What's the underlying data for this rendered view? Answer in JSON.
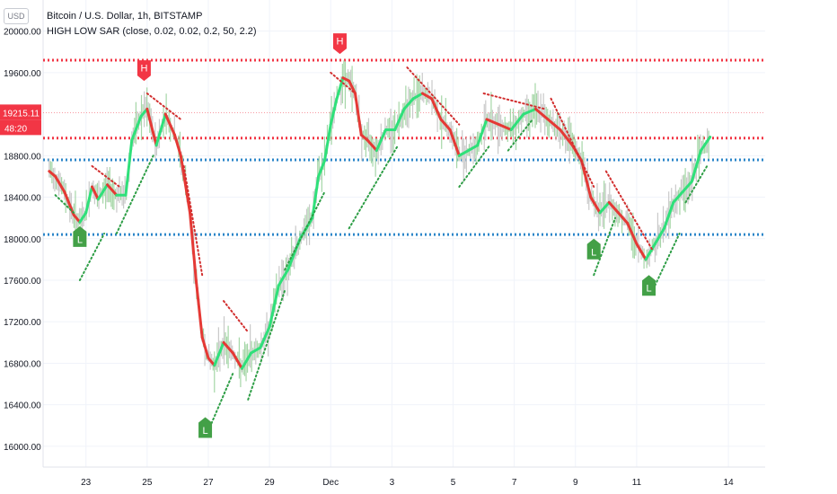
{
  "currency_button": "USD",
  "header": {
    "symbol_line": "Bitcoin / U.S. Dollar, 1h, BITSTAMP",
    "indicator_line": "HIGH LOW SAR  (close, 0.02, 0.02, 0.2, 50, 2.2)"
  },
  "chart_data": {
    "type": "line",
    "title": "Bitcoin / U.S. Dollar, 1h, BITSTAMP",
    "ylim": [
      15800,
      20300
    ],
    "y_ticks": [
      "20000.00",
      "19600.00",
      "18800.00",
      "18400.00",
      "18000.00",
      "17600.00",
      "17200.00",
      "16800.00",
      "16400.00",
      "16000.00"
    ],
    "x_ticks": [
      {
        "x": 23,
        "label": "23"
      },
      {
        "x": 25,
        "label": "25"
      },
      {
        "x": 27,
        "label": "27"
      },
      {
        "x": 29,
        "label": "29"
      },
      {
        "x": 31,
        "label": "Dec"
      },
      {
        "x": 33,
        "label": "3"
      },
      {
        "x": 35,
        "label": "5"
      },
      {
        "x": 37,
        "label": "7"
      },
      {
        "x": 39,
        "label": "9"
      },
      {
        "x": 41,
        "label": "11"
      },
      {
        "x": 44,
        "label": "14"
      }
    ],
    "price_label": {
      "value": 19215.11,
      "text": "19215.11",
      "countdown": "48:20"
    },
    "levels": [
      {
        "value": 19720,
        "color": "#f23645"
      },
      {
        "value": 18970,
        "color": "#f23645"
      },
      {
        "value": 18760,
        "color": "#2b86c9"
      },
      {
        "value": 18040,
        "color": "#2b86c9"
      }
    ],
    "smoothed_close": [
      {
        "x": 21.8,
        "y": 18650
      },
      {
        "x": 22.0,
        "y": 18600
      },
      {
        "x": 22.3,
        "y": 18450
      },
      {
        "x": 22.6,
        "y": 18230
      },
      {
        "x": 22.8,
        "y": 18160
      },
      {
        "x": 23.0,
        "y": 18250
      },
      {
        "x": 23.2,
        "y": 18500
      },
      {
        "x": 23.4,
        "y": 18380
      },
      {
        "x": 23.7,
        "y": 18520
      },
      {
        "x": 24.0,
        "y": 18420
      },
      {
        "x": 24.3,
        "y": 18420
      },
      {
        "x": 24.5,
        "y": 18950
      },
      {
        "x": 24.8,
        "y": 19180
      },
      {
        "x": 25.0,
        "y": 19250
      },
      {
        "x": 25.3,
        "y": 18900
      },
      {
        "x": 25.6,
        "y": 19200
      },
      {
        "x": 25.9,
        "y": 19000
      },
      {
        "x": 26.1,
        "y": 18800
      },
      {
        "x": 26.4,
        "y": 18250
      },
      {
        "x": 26.6,
        "y": 17600
      },
      {
        "x": 26.8,
        "y": 17050
      },
      {
        "x": 27.0,
        "y": 16850
      },
      {
        "x": 27.2,
        "y": 16780
      },
      {
        "x": 27.5,
        "y": 17000
      },
      {
        "x": 27.8,
        "y": 16900
      },
      {
        "x": 28.1,
        "y": 16750
      },
      {
        "x": 28.4,
        "y": 16900
      },
      {
        "x": 28.7,
        "y": 16950
      },
      {
        "x": 29.0,
        "y": 17150
      },
      {
        "x": 29.3,
        "y": 17550
      },
      {
        "x": 29.6,
        "y": 17700
      },
      {
        "x": 30.0,
        "y": 18000
      },
      {
        "x": 30.4,
        "y": 18200
      },
      {
        "x": 30.6,
        "y": 18600
      },
      {
        "x": 30.8,
        "y": 18750
      },
      {
        "x": 31.0,
        "y": 19100
      },
      {
        "x": 31.2,
        "y": 19350
      },
      {
        "x": 31.4,
        "y": 19550
      },
      {
        "x": 31.6,
        "y": 19520
      },
      {
        "x": 31.8,
        "y": 19400
      },
      {
        "x": 32.0,
        "y": 19000
      },
      {
        "x": 32.2,
        "y": 18950
      },
      {
        "x": 32.5,
        "y": 18850
      },
      {
        "x": 32.8,
        "y": 19050
      },
      {
        "x": 33.1,
        "y": 19050
      },
      {
        "x": 33.4,
        "y": 19250
      },
      {
        "x": 33.7,
        "y": 19350
      },
      {
        "x": 34.0,
        "y": 19400
      },
      {
        "x": 34.3,
        "y": 19350
      },
      {
        "x": 34.6,
        "y": 19150
      },
      {
        "x": 34.9,
        "y": 19050
      },
      {
        "x": 35.2,
        "y": 18800
      },
      {
        "x": 35.5,
        "y": 18850
      },
      {
        "x": 35.8,
        "y": 18900
      },
      {
        "x": 36.1,
        "y": 19150
      },
      {
        "x": 36.5,
        "y": 19100
      },
      {
        "x": 36.9,
        "y": 19050
      },
      {
        "x": 37.3,
        "y": 19200
      },
      {
        "x": 37.7,
        "y": 19250
      },
      {
        "x": 38.1,
        "y": 19150
      },
      {
        "x": 38.5,
        "y": 19050
      },
      {
        "x": 38.9,
        "y": 18900
      },
      {
        "x": 39.2,
        "y": 18750
      },
      {
        "x": 39.5,
        "y": 18400
      },
      {
        "x": 39.8,
        "y": 18250
      },
      {
        "x": 40.1,
        "y": 18350
      },
      {
        "x": 40.4,
        "y": 18250
      },
      {
        "x": 40.7,
        "y": 18150
      },
      {
        "x": 41.0,
        "y": 17950
      },
      {
        "x": 41.3,
        "y": 17800
      },
      {
        "x": 41.6,
        "y": 17950
      },
      {
        "x": 41.9,
        "y": 18100
      },
      {
        "x": 42.2,
        "y": 18350
      },
      {
        "x": 42.5,
        "y": 18450
      },
      {
        "x": 42.8,
        "y": 18550
      },
      {
        "x": 43.1,
        "y": 18850
      },
      {
        "x": 43.4,
        "y": 18980
      }
    ],
    "sar_segments": [
      {
        "color": "#2e9e46",
        "start": [
          22.0,
          18420
        ],
        "end": [
          22.6,
          18250
        ]
      },
      {
        "color": "#2e9e46",
        "start": [
          22.8,
          17600
        ],
        "end": [
          23.6,
          18050
        ]
      },
      {
        "color": "#d22f2f",
        "start": [
          23.2,
          18700
        ],
        "end": [
          24.1,
          18500
        ]
      },
      {
        "color": "#2e9e46",
        "start": [
          24.0,
          18050
        ],
        "end": [
          25.2,
          18800
        ]
      },
      {
        "color": "#d22f2f",
        "start": [
          25.0,
          19400
        ],
        "end": [
          26.1,
          19150
        ]
      },
      {
        "color": "#d22f2f",
        "start": [
          26.2,
          18700
        ],
        "end": [
          26.8,
          17650
        ]
      },
      {
        "color": "#2e9e46",
        "start": [
          27.0,
          16150
        ],
        "end": [
          27.8,
          16700
        ]
      },
      {
        "color": "#d22f2f",
        "start": [
          27.5,
          17400
        ],
        "end": [
          28.3,
          17100
        ]
      },
      {
        "color": "#2e9e46",
        "start": [
          28.3,
          16450
        ],
        "end": [
          29.5,
          17500
        ]
      },
      {
        "color": "#2e9e46",
        "start": [
          29.5,
          17700
        ],
        "end": [
          30.8,
          18450
        ]
      },
      {
        "color": "#d22f2f",
        "start": [
          31.0,
          19600
        ],
        "end": [
          31.8,
          19400
        ]
      },
      {
        "color": "#2e9e46",
        "start": [
          31.6,
          18100
        ],
        "end": [
          33.2,
          18900
        ]
      },
      {
        "color": "#d22f2f",
        "start": [
          33.5,
          19650
        ],
        "end": [
          35.2,
          19100
        ]
      },
      {
        "color": "#2e9e46",
        "start": [
          35.2,
          18500
        ],
        "end": [
          36.2,
          18900
        ]
      },
      {
        "color": "#d22f2f",
        "start": [
          36.0,
          19400
        ],
        "end": [
          38.0,
          19250
        ]
      },
      {
        "color": "#2e9e46",
        "start": [
          36.8,
          18850
        ],
        "end": [
          37.6,
          19150
        ]
      },
      {
        "color": "#d22f2f",
        "start": [
          38.2,
          19350
        ],
        "end": [
          39.6,
          18500
        ]
      },
      {
        "color": "#2e9e46",
        "start": [
          39.6,
          17650
        ],
        "end": [
          40.3,
          18200
        ]
      },
      {
        "color": "#d22f2f",
        "start": [
          40.0,
          18650
        ],
        "end": [
          41.5,
          17900
        ]
      },
      {
        "color": "#2e9e46",
        "start": [
          41.6,
          17550
        ],
        "end": [
          42.4,
          18050
        ]
      },
      {
        "color": "#2e9e46",
        "start": [
          42.6,
          18350
        ],
        "end": [
          43.3,
          18700
        ]
      }
    ],
    "signals": [
      {
        "label": "H",
        "x": 24.9,
        "y": 19520,
        "color": "#f23645",
        "above": true
      },
      {
        "label": "H",
        "x": 31.3,
        "y": 19780,
        "color": "#f23645",
        "above": true
      },
      {
        "label": "L",
        "x": 22.8,
        "y": 18120,
        "color": "#43a047",
        "above": false
      },
      {
        "label": "L",
        "x": 26.9,
        "y": 16280,
        "color": "#43a047",
        "above": false
      },
      {
        "label": "L",
        "x": 39.6,
        "y": 18000,
        "color": "#43a047",
        "above": false
      },
      {
        "label": "L",
        "x": 41.4,
        "y": 17650,
        "color": "#43a047",
        "above": false
      }
    ]
  }
}
